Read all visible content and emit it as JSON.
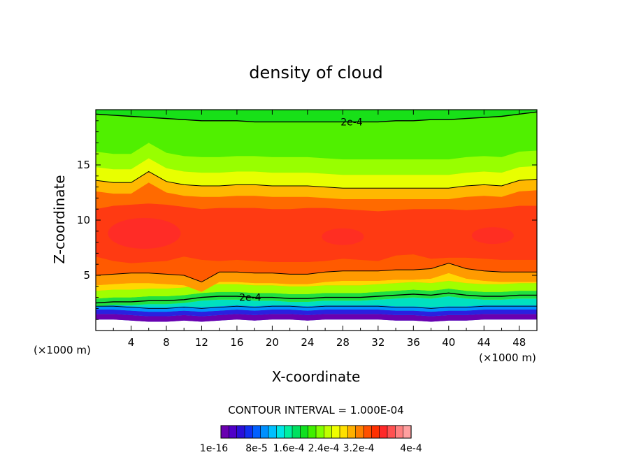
{
  "chart_data": {
    "type": "heatmap",
    "title": "density of cloud",
    "xlabel": "X-coordinate",
    "ylabel": "Z-coordinate",
    "x_unit_label": "(×1000 m)",
    "y_unit_label": "(×1000 m)",
    "xlim": [
      0,
      50
    ],
    "ylim": [
      0,
      20
    ],
    "x_ticks": [
      4,
      8,
      12,
      16,
      20,
      24,
      28,
      32,
      36,
      40,
      44,
      48
    ],
    "y_ticks": [
      5,
      10,
      15
    ],
    "contour_interval_text": "CONTOUR INTERVAL = 1.000E-04",
    "contour_label": "2e-4",
    "colorbar_tick_labels": [
      "1e-16",
      "8e-5",
      "1.6e-4",
      "2.4e-4",
      "3.2e-4",
      "4e-4"
    ],
    "colorbar_colors": [
      "#6a00b0",
      "#5000c8",
      "#2a10d8",
      "#1030f0",
      "#0060ff",
      "#0090ff",
      "#00c0ff",
      "#00e6e6",
      "#00f0a0",
      "#00e060",
      "#10e020",
      "#40f000",
      "#80ff00",
      "#c0ff00",
      "#f0ff00",
      "#ffe000",
      "#ffb000",
      "#ff8000",
      "#ff5000",
      "#ff3000",
      "#ff2828",
      "#ff5050",
      "#ff8080",
      "#ffa0a0"
    ],
    "x_profile": [
      0,
      2,
      4,
      6,
      8,
      10,
      12,
      14,
      16,
      18,
      20,
      22,
      24,
      26,
      28,
      30,
      32,
      34,
      36,
      38,
      40,
      42,
      44,
      46,
      48,
      50
    ],
    "base_z": [
      1.0,
      1.0,
      0.9,
      0.8,
      0.8,
      0.9,
      0.8,
      0.9,
      1.0,
      0.9,
      1.0,
      1.0,
      0.9,
      1.0,
      1.0,
      1.0,
      1.0,
      0.9,
      0.9,
      0.8,
      0.9,
      0.9,
      1.0,
      1.0,
      1.0,
      1.0
    ],
    "lower_contour_z": [
      2.5,
      2.6,
      2.6,
      2.7,
      2.7,
      2.8,
      3.0,
      3.1,
      3.1,
      3.0,
      3.0,
      2.9,
      2.9,
      3.0,
      3.0,
      3.0,
      3.1,
      3.2,
      3.3,
      3.2,
      3.4,
      3.2,
      3.1,
      3.1,
      3.2,
      3.2
    ],
    "mid_contour_z": [
      5.0,
      5.1,
      5.2,
      5.2,
      5.1,
      5.0,
      4.4,
      5.3,
      5.3,
      5.2,
      5.2,
      5.1,
      5.1,
      5.3,
      5.4,
      5.4,
      5.4,
      5.5,
      5.5,
      5.6,
      6.1,
      5.6,
      5.4,
      5.3,
      5.3,
      5.3
    ],
    "upper_contour_z": [
      13.6,
      13.4,
      13.4,
      14.4,
      13.5,
      13.2,
      13.1,
      13.1,
      13.2,
      13.2,
      13.1,
      13.1,
      13.1,
      13.0,
      12.9,
      12.9,
      12.9,
      12.9,
      12.9,
      12.9,
      12.9,
      13.1,
      13.2,
      13.1,
      13.6,
      13.7
    ],
    "top_contour_z": [
      19.6,
      19.5,
      19.4,
      19.3,
      19.2,
      19.1,
      19.0,
      19.0,
      19.0,
      18.9,
      18.9,
      18.9,
      18.9,
      18.9,
      18.9,
      18.9,
      18.9,
      19.0,
      19.0,
      19.1,
      19.1,
      19.2,
      19.3,
      19.4,
      19.6,
      19.8
    ],
    "core_top_z": [
      11.0,
      11.3,
      11.4,
      11.5,
      11.4,
      11.2,
      11.0,
      11.1,
      11.1,
      11.1,
      11.0,
      11.0,
      11.1,
      11.1,
      11.0,
      10.9,
      10.8,
      10.9,
      11.0,
      11.0,
      11.0,
      10.9,
      11.0,
      11.1,
      11.3,
      11.3
    ],
    "core_bottom_z": [
      6.7,
      6.3,
      6.1,
      6.2,
      6.3,
      6.7,
      6.4,
      6.3,
      6.4,
      6.3,
      6.2,
      6.2,
      6.2,
      6.3,
      6.5,
      6.4,
      6.3,
      6.8,
      6.9,
      6.5,
      6.6,
      6.6,
      6.5,
      6.4,
      6.4,
      6.4
    ],
    "grid": false
  }
}
